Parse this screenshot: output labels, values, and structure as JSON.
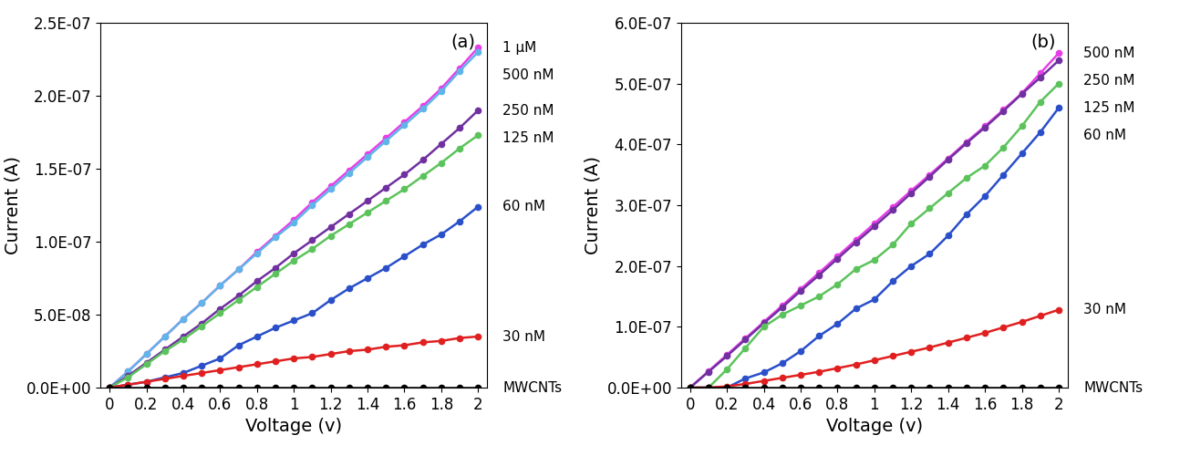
{
  "chart_data": [
    {
      "type": "line",
      "title": "(a)",
      "x_label": "Voltage (v)",
      "y_label": "Current (A)",
      "marker": "o",
      "x": [
        0,
        0.1,
        0.2,
        0.3,
        0.4,
        0.5,
        0.6,
        0.7,
        0.8,
        0.9,
        1.0,
        1.1,
        1.2,
        1.3,
        1.4,
        1.5,
        1.6,
        1.7,
        1.8,
        1.9,
        2.0
      ],
      "xlim": [
        -0.05,
        2.05
      ],
      "ylim": [
        0,
        2.5e-07
      ],
      "xticks": [
        0,
        0.2,
        0.4,
        0.6,
        0.8,
        1,
        1.2,
        1.4,
        1.6,
        1.8,
        2
      ],
      "yticks": [
        {
          "value": 0,
          "label": "0.0E+00"
        },
        {
          "value": 5e-08,
          "label": "5.0E-08"
        },
        {
          "value": 1e-07,
          "label": "1.0E-07"
        },
        {
          "value": 1.5e-07,
          "label": "1.5E-07"
        },
        {
          "value": 2e-07,
          "label": "2.0E-07"
        },
        {
          "value": 2.5e-07,
          "label": "2.5E-07"
        }
      ],
      "series": [
        {
          "name": "1 µM",
          "color": "#e83ee8",
          "values": [
            0,
            1.1e-08,
            2.3e-08,
            3.5e-08,
            4.7e-08,
            5.8e-08,
            7e-08,
            8.1e-08,
            9.3e-08,
            1.04e-07,
            1.15e-07,
            1.27e-07,
            1.38e-07,
            1.49e-07,
            1.6e-07,
            1.71e-07,
            1.82e-07,
            1.93e-07,
            2.05e-07,
            2.19e-07,
            2.33e-07
          ]
        },
        {
          "name": "500 nM",
          "color": "#5fb4e8",
          "values": [
            0,
            1.1e-08,
            2.3e-08,
            3.5e-08,
            4.7e-08,
            5.8e-08,
            7e-08,
            8.1e-08,
            9.2e-08,
            1.03e-07,
            1.13e-07,
            1.25e-07,
            1.36e-07,
            1.47e-07,
            1.58e-07,
            1.69e-07,
            1.8e-07,
            1.91e-07,
            2.03e-07,
            2.17e-07,
            2.3e-07
          ]
        },
        {
          "name": "250 nM",
          "color": "#7030a0",
          "values": [
            0,
            8e-09,
            1.7e-08,
            2.6e-08,
            3.5e-08,
            4.4e-08,
            5.4e-08,
            6.3e-08,
            7.3e-08,
            8.2e-08,
            9.2e-08,
            1.01e-07,
            1.1e-07,
            1.19e-07,
            1.28e-07,
            1.37e-07,
            1.46e-07,
            1.56e-07,
            1.67e-07,
            1.78e-07,
            1.9e-07
          ]
        },
        {
          "name": "125 nM",
          "color": "#5cc35c",
          "values": [
            0,
            7e-09,
            1.6e-08,
            2.5e-08,
            3.3e-08,
            4.2e-08,
            5.1e-08,
            6e-08,
            6.9e-08,
            7.8e-08,
            8.7e-08,
            9.5e-08,
            1.04e-07,
            1.12e-07,
            1.2e-07,
            1.28e-07,
            1.36e-07,
            1.45e-07,
            1.54e-07,
            1.64e-07,
            1.73e-07
          ]
        },
        {
          "name": "60 nM",
          "color": "#2a4fc9",
          "values": [
            0,
            2e-09,
            4e-09,
            7e-09,
            1e-08,
            1.5e-08,
            2e-08,
            2.9e-08,
            3.5e-08,
            4.1e-08,
            4.6e-08,
            5.1e-08,
            6e-08,
            6.8e-08,
            7.5e-08,
            8.2e-08,
            9e-08,
            9.8e-08,
            1.05e-07,
            1.14e-07,
            1.24e-07
          ]
        },
        {
          "name": "30 nM",
          "color": "#e02020",
          "values": [
            0,
            2e-09,
            4e-09,
            6e-09,
            8e-09,
            1e-08,
            1.2e-08,
            1.4e-08,
            1.6e-08,
            1.8e-08,
            2e-08,
            2.1e-08,
            2.3e-08,
            2.5e-08,
            2.6e-08,
            2.8e-08,
            2.9e-08,
            3.1e-08,
            3.2e-08,
            3.4e-08,
            3.5e-08
          ]
        },
        {
          "name": "MWCNTs",
          "color": "#000000",
          "values": [
            0,
            0,
            0,
            0,
            0,
            0,
            0,
            0,
            0,
            0,
            0,
            0,
            0,
            0,
            0,
            0,
            0,
            0,
            0,
            0,
            0
          ]
        }
      ]
    },
    {
      "type": "line",
      "title": "(b)",
      "x_label": "Voltage (v)",
      "y_label": "Current (A)",
      "marker": "o",
      "x": [
        0,
        0.1,
        0.2,
        0.3,
        0.4,
        0.5,
        0.6,
        0.7,
        0.8,
        0.9,
        1.0,
        1.1,
        1.2,
        1.3,
        1.4,
        1.5,
        1.6,
        1.7,
        1.8,
        1.9,
        2.0
      ],
      "xlim": [
        -0.05,
        2.05
      ],
      "ylim": [
        0,
        6e-07
      ],
      "xticks": [
        0,
        0.2,
        0.4,
        0.6,
        0.8,
        1,
        1.2,
        1.4,
        1.6,
        1.8,
        2
      ],
      "yticks": [
        {
          "value": 0,
          "label": "0.0E+00"
        },
        {
          "value": 1e-07,
          "label": "1.0E-07"
        },
        {
          "value": 2e-07,
          "label": "2.0E-07"
        },
        {
          "value": 3e-07,
          "label": "3.0E-07"
        },
        {
          "value": 4e-07,
          "label": "4.0E-07"
        },
        {
          "value": 5e-07,
          "label": "5.0E-07"
        },
        {
          "value": 6e-07,
          "label": "6.0E-07"
        }
      ],
      "series": [
        {
          "name": "500 nM",
          "color": "#e83ee8",
          "values": [
            0,
            2.7e-08,
            5.4e-08,
            8.1e-08,
            1.08e-07,
            1.35e-07,
            1.62e-07,
            1.89e-07,
            2.16e-07,
            2.43e-07,
            2.7e-07,
            2.97e-07,
            3.24e-07,
            3.5e-07,
            3.77e-07,
            4.04e-07,
            4.3e-07,
            4.57e-07,
            4.84e-07,
            5.17e-07,
            5.5e-07
          ]
        },
        {
          "name": "250 nM",
          "color": "#7030a0",
          "values": [
            0,
            2.6e-08,
            5.2e-08,
            7.9e-08,
            1.06e-07,
            1.32e-07,
            1.59e-07,
            1.85e-07,
            2.12e-07,
            2.39e-07,
            2.65e-07,
            2.92e-07,
            3.2e-07,
            3.47e-07,
            3.75e-07,
            4.02e-07,
            4.28e-07,
            4.55e-07,
            4.83e-07,
            5.1e-07,
            5.38e-07
          ]
        },
        {
          "name": "125 nM",
          "color": "#5cc35c",
          "values": [
            0,
            0,
            3e-08,
            6.5e-08,
            1e-07,
            1.2e-07,
            1.35e-07,
            1.5e-07,
            1.7e-07,
            1.95e-07,
            2.1e-07,
            2.35e-07,
            2.7e-07,
            2.95e-07,
            3.2e-07,
            3.45e-07,
            3.65e-07,
            3.95e-07,
            4.3e-07,
            4.7e-07,
            5e-07
          ]
        },
        {
          "name": "60 nM",
          "color": "#2a4fc9",
          "values": [
            0,
            0,
            0,
            1.5e-08,
            2.5e-08,
            4e-08,
            6e-08,
            8.5e-08,
            1.05e-07,
            1.3e-07,
            1.45e-07,
            1.75e-07,
            2e-07,
            2.2e-07,
            2.5e-07,
            2.85e-07,
            3.15e-07,
            3.5e-07,
            3.85e-07,
            4.2e-07,
            4.6e-07
          ]
        },
        {
          "name": "30 nM",
          "color": "#e02020",
          "values": [
            0,
            0,
            2e-09,
            6e-09,
            1.1e-08,
            1.6e-08,
            2.1e-08,
            2.6e-08,
            3.2e-08,
            3.8e-08,
            4.5e-08,
            5.2e-08,
            5.9e-08,
            6.6e-08,
            7.4e-08,
            8.2e-08,
            9e-08,
            9.9e-08,
            1.08e-07,
            1.18e-07,
            1.28e-07
          ]
        },
        {
          "name": "MWCNTs",
          "color": "#000000",
          "values": [
            0,
            0,
            0,
            0,
            0,
            0,
            0,
            0,
            0,
            0,
            0,
            0,
            0,
            0,
            0,
            0,
            0,
            0,
            0,
            0,
            0
          ]
        }
      ]
    }
  ]
}
